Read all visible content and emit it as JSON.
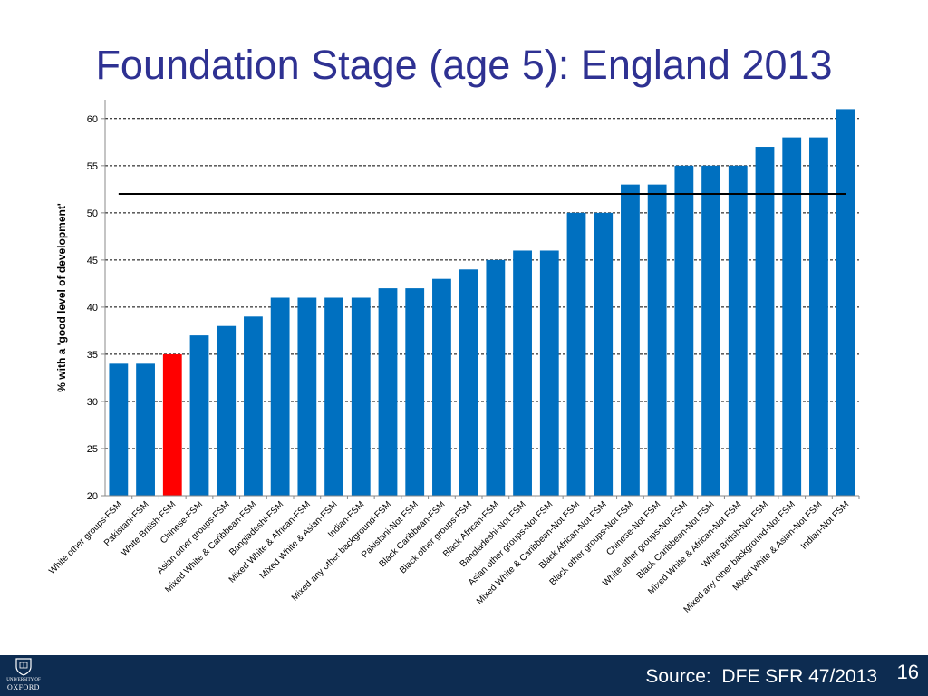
{
  "slide": {
    "title": "Foundation Stage (age 5): England 2013"
  },
  "footer": {
    "logo_line1": "UNIVERSITY OF",
    "logo_line2": "OXFORD",
    "source": "Source:  DFE SFR 47/2013",
    "page_number": "16",
    "background_color": "#0d2c51"
  },
  "chart_data": {
    "type": "bar",
    "ylabel": "% with a 'good level of development'",
    "xlabel": "",
    "ylim": [
      20,
      62
    ],
    "yticks": [
      20,
      25,
      30,
      35,
      40,
      45,
      50,
      55,
      60
    ],
    "grid": "horizontal-dashed",
    "reference_line": 52,
    "bar_color": "#0070c0",
    "highlight_color": "#ff0000",
    "highlight_category": "White British-FSM",
    "categories": [
      "White other groups-FSM",
      "Pakistani-FSM",
      "White British-FSM",
      "Chinese-FSM",
      "Asian other groups-FSM",
      "Mixed White & Caribbean-FSM",
      "Bangladeshi-FSM",
      "Mixed White & African-FSM",
      "Mixed White & Asian-FSM",
      "Indian-FSM",
      "Mixed any other background-FSM",
      "Pakistani-Not FSM",
      "Black Caribbean-FSM",
      "Black other groups-FSM",
      "Black African-FSM",
      "Bangladeshi-Not FSM",
      "Asian other groups-Not FSM",
      "Mixed White & Caribbean-Not FSM",
      "Black African-Not FSM",
      "Black other groups-Not FSM",
      "Chinese-Not FSM",
      "White other groups-Not FSM",
      "Black Caribbean-Not FSM",
      "Mixed White & African-Not FSM",
      "White British-Not FSM",
      "Mixed any other background-Not FSM",
      "Mixed White & Asian-Not FSM",
      "Indian-Not FSM"
    ],
    "values": [
      34,
      34,
      35,
      37,
      38,
      39,
      41,
      41,
      41,
      41,
      42,
      42,
      43,
      44,
      45,
      46,
      46,
      50,
      50,
      53,
      53,
      55,
      55,
      55,
      57,
      58,
      58,
      61
    ]
  }
}
